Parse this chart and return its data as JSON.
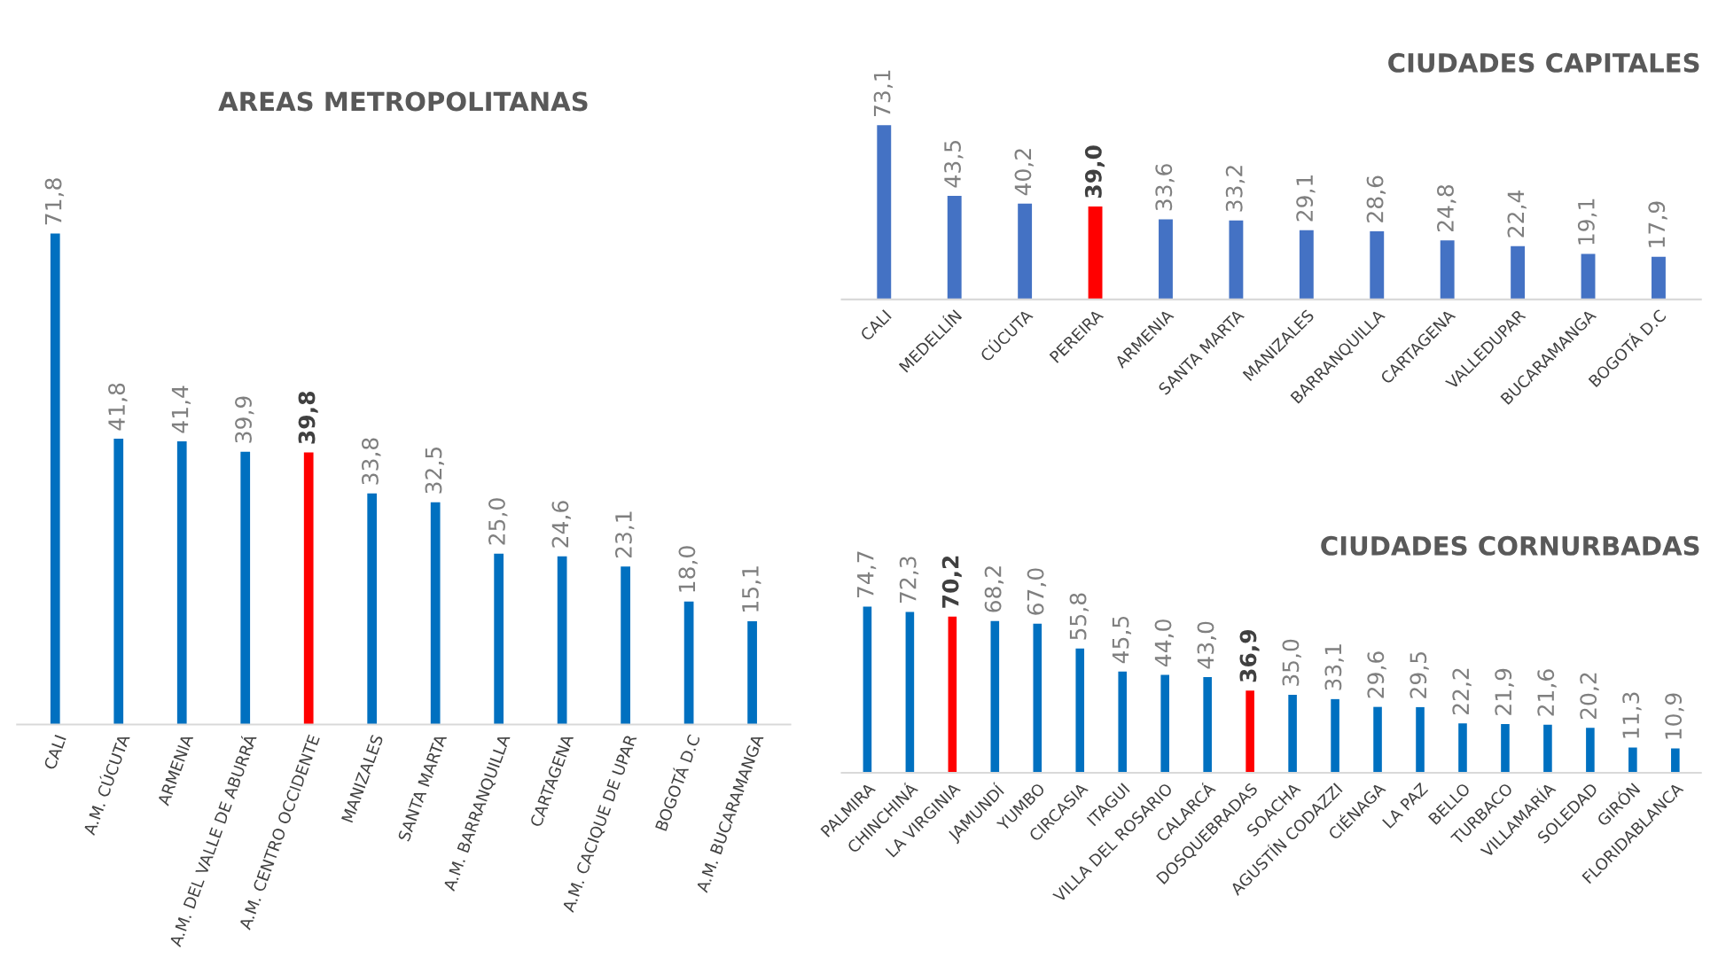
{
  "chart_data": [
    {
      "type": "bar",
      "title": "AREAS METROPOLITANAS",
      "categories": [
        "CALI",
        "A.M. CÚCUTA",
        "ARMENIA",
        "A.M. DEL VALLE DE ABURRÁ",
        "A.M. CENTRO OCCIDENTE",
        "MANIZALES",
        "SANTA MARTA",
        "A.M. BARRANQUILLA",
        "CARTAGENA",
        "A.M. CACIQUE DE UPAR",
        "BOGOTÁ D.C",
        "A.M. BUCARAMANGA"
      ],
      "values": [
        71.8,
        41.8,
        41.4,
        39.9,
        39.8,
        33.8,
        32.5,
        25.0,
        24.6,
        23.1,
        18.0,
        15.1
      ],
      "value_labels": [
        "71,8",
        "41,8",
        "41,4",
        "39,9",
        "39,8",
        "33,8",
        "32,5",
        "25,0",
        "24,6",
        "23,1",
        "18,0",
        "15,1"
      ],
      "colors": [
        "#0070c0",
        "#0070c0",
        "#0070c0",
        "#0070c0",
        "#ff0000",
        "#0070c0",
        "#0070c0",
        "#0070c0",
        "#0070c0",
        "#0070c0",
        "#0070c0",
        "#0070c0"
      ],
      "grid": false,
      "legend": false
    },
    {
      "type": "bar",
      "title": "CIUDADES CAPITALES",
      "categories": [
        "CALI",
        "MEDELLÍN",
        "CÚCUTA",
        "PEREIRA",
        "ARMENIA",
        "SANTA MARTA",
        "MANIZALES",
        "BARRANQUILLA",
        "CARTAGENA",
        "VALLEDUPAR",
        "BUCARAMANGA",
        "BOGOTÁ D.C"
      ],
      "values": [
        73.1,
        43.5,
        40.2,
        39.0,
        33.6,
        33.2,
        29.1,
        28.6,
        24.8,
        22.4,
        19.1,
        17.9
      ],
      "value_labels": [
        "73,1",
        "43,5",
        "40,2",
        "39,0",
        "33,6",
        "33,2",
        "29,1",
        "28,6",
        "24,8",
        "22,4",
        "19,1",
        "17,9"
      ],
      "colors": [
        "#4472c4",
        "#4472c4",
        "#4472c4",
        "#ff0000",
        "#4472c4",
        "#4472c4",
        "#4472c4",
        "#4472c4",
        "#4472c4",
        "#4472c4",
        "#4472c4",
        "#4472c4"
      ],
      "grid": false,
      "legend": false
    },
    {
      "type": "bar",
      "title": "CIUDADES CORNURBADAS",
      "categories": [
        "PALMIRA",
        "CHINCHINÁ",
        "LA VIRGINIA",
        "JAMUNDÍ",
        "YUMBO",
        "CIRCASIA",
        "ITAGUI",
        "VILLA DEL ROSARIO",
        "CALARCÁ",
        "DOSQUEBRADAS",
        "SOACHA",
        "AGUSTÍN CODAZZI",
        "CIÉNAGA",
        "LA PAZ",
        "BELLO",
        "TURBACO",
        "VILLAMARÍA",
        "SOLEDAD",
        "GIRÓN",
        "FLORIDABLANCA"
      ],
      "values": [
        74.7,
        72.3,
        70.2,
        68.2,
        67.0,
        55.8,
        45.5,
        44.0,
        43.0,
        36.9,
        35.0,
        33.1,
        29.6,
        29.5,
        22.2,
        21.9,
        21.6,
        20.2,
        11.3,
        10.9
      ],
      "value_labels": [
        "74,7",
        "72,3",
        "70,2",
        "68,2",
        "67,0",
        "55,8",
        "45,5",
        "44,0",
        "43,0",
        "36,9",
        "35,0",
        "33,1",
        "29,6",
        "29,5",
        "22,2",
        "21,9",
        "21,6",
        "20,2",
        "11,3",
        "10,9"
      ],
      "colors": [
        "#0070c0",
        "#0070c0",
        "#ff0000",
        "#0070c0",
        "#0070c0",
        "#0070c0",
        "#0070c0",
        "#0070c0",
        "#0070c0",
        "#ff0000",
        "#0070c0",
        "#0070c0",
        "#0070c0",
        "#0070c0",
        "#0070c0",
        "#0070c0",
        "#0070c0",
        "#0070c0",
        "#0070c0",
        "#0070c0"
      ],
      "grid": false,
      "legend": false
    }
  ]
}
